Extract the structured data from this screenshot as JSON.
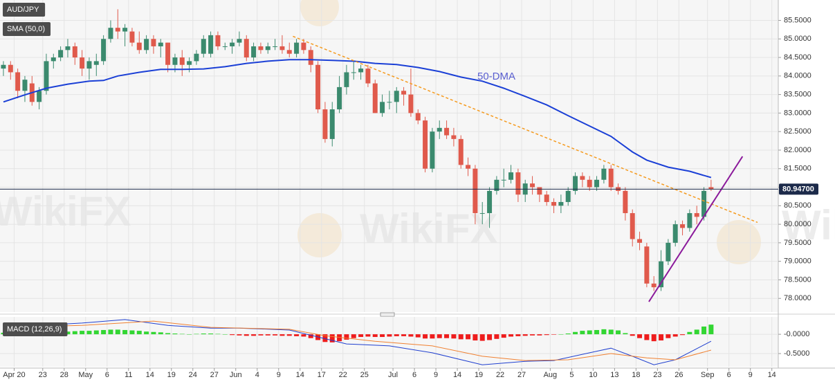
{
  "chart_data": [
    {
      "type": "candlestick",
      "title": "AUD/JPY",
      "watermark": "WikiFX",
      "grid": true,
      "up_color": "#3b8a6e",
      "down_color": "#e05a4c",
      "xlim": [
        -0.48,
        108.4
      ],
      "ylim": [
        77.65,
        86.05
      ],
      "xticks": [
        {
          "value": 1.5,
          "label": "Apr 20"
        },
        {
          "value": 5.5,
          "label": "23"
        },
        {
          "value": 8.5,
          "label": "28"
        },
        {
          "value": 11.5,
          "label": "May"
        },
        {
          "value": 14.5,
          "label": "6"
        },
        {
          "value": 17.5,
          "label": "11"
        },
        {
          "value": 20.5,
          "label": "14"
        },
        {
          "value": 23.5,
          "label": "19"
        },
        {
          "value": 26.5,
          "label": "24"
        },
        {
          "value": 29.5,
          "label": "27"
        },
        {
          "value": 32.5,
          "label": "Jun"
        },
        {
          "value": 35.5,
          "label": "4"
        },
        {
          "value": 38.5,
          "label": "9"
        },
        {
          "value": 41.5,
          "label": "14"
        },
        {
          "value": 44.5,
          "label": "17"
        },
        {
          "value": 47.5,
          "label": "22"
        },
        {
          "value": 50.5,
          "label": "25"
        },
        {
          "value": 54.5,
          "label": "Jul"
        },
        {
          "value": 57.5,
          "label": "6"
        },
        {
          "value": 60.5,
          "label": "9"
        },
        {
          "value": 63.5,
          "label": "14"
        },
        {
          "value": 66.5,
          "label": "19"
        },
        {
          "value": 69.5,
          "label": "22"
        },
        {
          "value": 72.5,
          "label": "27"
        },
        {
          "value": 76.5,
          "label": "Aug"
        },
        {
          "value": 79.5,
          "label": "5"
        },
        {
          "value": 82.5,
          "label": "10"
        },
        {
          "value": 85.5,
          "label": "13"
        },
        {
          "value": 88.5,
          "label": "18"
        },
        {
          "value": 91.5,
          "label": "23"
        },
        {
          "value": 94.5,
          "label": "26"
        },
        {
          "value": 98.5,
          "label": "Sep"
        },
        {
          "value": 101.5,
          "label": "6"
        },
        {
          "value": 104.5,
          "label": "9"
        },
        {
          "value": 107.5,
          "label": "14"
        }
      ],
      "yticks": [
        {
          "value": 78,
          "label": "78.0000"
        },
        {
          "value": 78.5,
          "label": "78.5000"
        },
        {
          "value": 79,
          "label": "79.0000"
        },
        {
          "value": 79.5,
          "label": "79.5000"
        },
        {
          "value": 80,
          "label": "80.0000"
        },
        {
          "value": 80.5,
          "label": "80.5000"
        },
        {
          "value": 81,
          "label": "81.0000"
        },
        {
          "value": 81.5,
          "label": "81.5000"
        },
        {
          "value": 82,
          "label": "82.0000"
        },
        {
          "value": 82.5,
          "label": "82.5000"
        },
        {
          "value": 83,
          "label": "83.0000"
        },
        {
          "value": 83.5,
          "label": "83.5000"
        },
        {
          "value": 84,
          "label": "84.0000"
        },
        {
          "value": 84.5,
          "label": "84.5000"
        },
        {
          "value": 85,
          "label": "85.0000"
        },
        {
          "value": 85.5,
          "label": "85.5000"
        }
      ],
      "candles": {
        "x": [
          0,
          1,
          2,
          3,
          4,
          5,
          6,
          7,
          8,
          9,
          10,
          11,
          12,
          13,
          14,
          15,
          16,
          17,
          18,
          19,
          20,
          21,
          22,
          23,
          24,
          25,
          26,
          27,
          28,
          29,
          30,
          31,
          32,
          33,
          34,
          35,
          36,
          37,
          38,
          39,
          40,
          41,
          42,
          43,
          44,
          45,
          46,
          47,
          48,
          49,
          50,
          51,
          52,
          53,
          54,
          55,
          56,
          57,
          58,
          59,
          60,
          61,
          62,
          63,
          64,
          65,
          66,
          67,
          68,
          69,
          70,
          71,
          72,
          73,
          74,
          75,
          76,
          77,
          78,
          79,
          80,
          81,
          82,
          83,
          84,
          85,
          86,
          87,
          88,
          89,
          90,
          91,
          92,
          93,
          94,
          95,
          96,
          97,
          98,
          99
        ],
        "open": [
          84.2,
          84.3,
          84.1,
          83.6,
          83.8,
          83.3,
          83.6,
          84.4,
          84.5,
          84.7,
          84.8,
          84.5,
          84.2,
          84.3,
          84.4,
          85.0,
          85.3,
          85.2,
          85.2,
          84.9,
          84.7,
          85.0,
          84.8,
          84.9,
          84.3,
          84.5,
          84.3,
          84.4,
          84.6,
          84.6,
          85.1,
          84.8,
          84.8,
          84.9,
          85.0,
          84.5,
          84.8,
          84.7,
          84.8,
          84.8,
          84.7,
          84.6,
          84.9,
          84.7,
          84.3,
          83.1,
          82.3,
          83.1,
          83.7,
          84.1,
          84.1,
          84.2,
          83.8,
          83.0,
          83.3,
          83.3,
          83.6,
          83.5,
          83.0,
          82.8,
          81.5,
          82.5,
          82.6,
          82.4,
          82.3,
          81.6,
          81.5,
          80.3,
          80.3,
          80.9,
          81.2,
          81.2,
          81.4,
          80.8,
          81.1,
          81.0,
          80.8,
          80.6,
          80.5,
          80.6,
          80.9,
          81.3,
          81.2,
          81.0,
          81.2,
          81.5,
          81.0,
          80.9,
          80.3,
          79.6,
          79.4,
          78.4,
          78.3,
          79.0,
          79.5,
          80.0,
          79.9,
          80.3,
          80.2,
          81.0
        ],
        "high": [
          84.4,
          84.4,
          84.2,
          84.0,
          84.0,
          83.7,
          84.6,
          84.6,
          84.8,
          85.0,
          84.9,
          84.7,
          84.5,
          84.6,
          85.1,
          85.5,
          85.8,
          85.4,
          85.3,
          85.2,
          85.1,
          85.1,
          85.0,
          84.9,
          84.6,
          84.7,
          84.5,
          84.7,
          85.1,
          85.2,
          85.2,
          84.9,
          85.0,
          85.2,
          85.1,
          84.9,
          84.9,
          84.9,
          85.0,
          85.1,
          84.9,
          85.0,
          85.0,
          84.8,
          84.4,
          83.3,
          83.3,
          84.0,
          84.3,
          84.4,
          84.3,
          84.3,
          83.9,
          83.5,
          83.6,
          83.7,
          83.7,
          84.2,
          83.1,
          82.9,
          82.6,
          82.8,
          82.8,
          82.6,
          82.4,
          81.8,
          81.6,
          80.6,
          81.0,
          81.3,
          81.5,
          81.6,
          81.5,
          81.2,
          81.3,
          81.0,
          80.9,
          80.7,
          80.8,
          81.0,
          81.4,
          81.4,
          81.3,
          81.3,
          81.6,
          81.6,
          81.1,
          81.0,
          80.4,
          79.8,
          79.5,
          78.6,
          79.3,
          79.6,
          80.1,
          80.1,
          80.4,
          80.5,
          81.0,
          81.2
        ],
        "low": [
          84.0,
          83.9,
          83.4,
          83.3,
          83.2,
          83.1,
          83.5,
          84.2,
          84.4,
          84.5,
          84.3,
          84.0,
          83.9,
          84.0,
          84.3,
          84.9,
          85.0,
          84.8,
          84.8,
          84.6,
          84.6,
          84.6,
          84.5,
          84.1,
          84.1,
          84.0,
          84.1,
          84.3,
          84.5,
          84.5,
          84.7,
          84.7,
          84.6,
          84.8,
          84.4,
          84.4,
          84.6,
          84.6,
          84.7,
          84.6,
          84.5,
          84.5,
          84.6,
          84.1,
          83.0,
          82.2,
          82.1,
          83.0,
          83.5,
          83.9,
          83.9,
          83.7,
          83.0,
          82.9,
          83.1,
          83.0,
          83.2,
          82.9,
          82.7,
          81.4,
          81.4,
          82.3,
          82.3,
          82.1,
          81.5,
          81.3,
          80.0,
          80.0,
          79.9,
          80.8,
          81.0,
          81.1,
          80.6,
          80.6,
          80.8,
          80.6,
          80.5,
          80.3,
          80.3,
          80.5,
          80.8,
          81.0,
          80.9,
          80.9,
          81.1,
          80.9,
          80.8,
          80.1,
          79.4,
          79.3,
          78.3,
          78.2,
          78.2,
          78.9,
          79.4,
          79.7,
          79.8,
          80.0,
          80.1,
          80.9
        ],
        "close": [
          84.3,
          84.1,
          83.6,
          83.9,
          83.3,
          83.6,
          84.4,
          84.5,
          84.7,
          84.8,
          84.5,
          84.2,
          84.4,
          84.4,
          85.0,
          85.3,
          85.2,
          85.3,
          84.9,
          84.7,
          85.0,
          84.8,
          84.9,
          84.3,
          84.5,
          84.3,
          84.4,
          84.6,
          85.0,
          85.1,
          84.8,
          84.8,
          84.9,
          85.0,
          84.5,
          84.8,
          84.7,
          84.8,
          84.8,
          84.7,
          84.6,
          84.9,
          84.7,
          84.3,
          83.1,
          82.3,
          83.1,
          83.7,
          84.1,
          84.1,
          84.2,
          83.8,
          83.0,
          83.3,
          83.3,
          83.6,
          83.5,
          83.0,
          82.8,
          81.5,
          82.5,
          82.6,
          82.4,
          82.3,
          81.6,
          81.5,
          80.3,
          80.3,
          80.9,
          81.2,
          81.2,
          81.4,
          80.8,
          81.1,
          81.0,
          80.8,
          80.6,
          80.5,
          80.6,
          80.9,
          81.3,
          81.2,
          81.0,
          81.2,
          81.5,
          81.0,
          80.9,
          80.3,
          79.6,
          79.5,
          78.4,
          78.3,
          79.0,
          79.5,
          80.0,
          79.9,
          80.3,
          80.2,
          80.9,
          80.95
        ]
      },
      "series": [
        {
          "name": "SMA (50,0)",
          "color": "#1a3fd6",
          "annotation": "50-DMA",
          "x": [
            0,
            3,
            6,
            9,
            12,
            14,
            16,
            19,
            22,
            25,
            28,
            31,
            34,
            37,
            40,
            43,
            46,
            49,
            52,
            55,
            58,
            61,
            64,
            67,
            70,
            73,
            76,
            79,
            82,
            85,
            88,
            90,
            93,
            96,
            99
          ],
          "values": [
            83.3,
            83.49,
            83.67,
            83.78,
            83.86,
            83.88,
            84.0,
            84.1,
            84.18,
            84.18,
            84.19,
            84.25,
            84.34,
            84.4,
            84.44,
            84.44,
            84.42,
            84.4,
            84.34,
            84.31,
            84.23,
            84.12,
            83.97,
            83.86,
            83.67,
            83.45,
            83.22,
            82.93,
            82.65,
            82.37,
            81.95,
            81.73,
            81.54,
            81.43,
            81.26
          ]
        }
      ],
      "trendlines": [
        {
          "color": "#f59a1d",
          "dashed": true,
          "x": [
            40.5,
            105.5
          ],
          "values": [
            85.07,
            80.05
          ]
        },
        {
          "color": "#8b1a9b",
          "dashed": false,
          "x": [
            90.3,
            103.4
          ],
          "values": [
            77.91,
            81.83
          ]
        }
      ],
      "last_price": {
        "value": 80.947,
        "label": "80.94700"
      }
    },
    {
      "type": "macd",
      "title": "MACD (12,26,9)",
      "grid": true,
      "xlim": [
        -0.48,
        108.4
      ],
      "ylim": [
        -0.84,
        0.45
      ],
      "yticks": [
        {
          "value": 0,
          "label": "-0.0000"
        },
        {
          "value": -0.5,
          "label": "-0.5000"
        }
      ],
      "up_color": "#33d633",
      "down_color": "#ee1c1c",
      "histogram": [
        0.04,
        0.04,
        0.03,
        0.02,
        0.02,
        0.02,
        0.03,
        0.05,
        0.06,
        0.07,
        0.08,
        0.09,
        0.09,
        0.1,
        0.11,
        0.12,
        0.12,
        0.11,
        0.1,
        0.09,
        0.07,
        0.06,
        0.05,
        0.03,
        0.02,
        0.01,
        0.0,
        0.01,
        0.02,
        0.02,
        0.01,
        0.0,
        -0.02,
        -0.03,
        -0.04,
        -0.04,
        -0.03,
        -0.03,
        -0.03,
        -0.04,
        -0.04,
        -0.05,
        -0.06,
        -0.1,
        -0.15,
        -0.2,
        -0.21,
        -0.18,
        -0.14,
        -0.1,
        -0.07,
        -0.06,
        -0.07,
        -0.07,
        -0.06,
        -0.05,
        -0.05,
        -0.06,
        -0.08,
        -0.11,
        -0.11,
        -0.1,
        -0.1,
        -0.11,
        -0.13,
        -0.13,
        -0.16,
        -0.17,
        -0.15,
        -0.12,
        -0.09,
        -0.06,
        -0.05,
        -0.04,
        -0.03,
        -0.03,
        -0.02,
        -0.01,
        0.0,
        0.02,
        0.06,
        0.09,
        0.1,
        0.11,
        0.13,
        0.12,
        0.1,
        0.03,
        -0.04,
        -0.1,
        -0.15,
        -0.18,
        -0.16,
        -0.1,
        -0.06,
        -0.02,
        0.06,
        0.12,
        0.2,
        0.25
      ],
      "series": [
        {
          "color": "#1f3fcf",
          "x": [
            0,
            5,
            11,
            17,
            23,
            29,
            33,
            40,
            44,
            48,
            54,
            60,
            67,
            73,
            77,
            82,
            85,
            88,
            91,
            94,
            99
          ],
          "values": [
            0.23,
            0.23,
            0.29,
            0.38,
            0.23,
            0.16,
            0.16,
            0.11,
            -0.07,
            -0.25,
            -0.3,
            -0.48,
            -0.79,
            -0.7,
            -0.68,
            -0.48,
            -0.36,
            -0.57,
            -0.79,
            -0.66,
            -0.18
          ]
        },
        {
          "color": "#f08030",
          "x": [
            0,
            11,
            21,
            29,
            40,
            45,
            52,
            60,
            67,
            73,
            79,
            85,
            90,
            94,
            99
          ],
          "values": [
            0.18,
            0.23,
            0.34,
            0.18,
            0.13,
            -0.04,
            -0.18,
            -0.3,
            -0.57,
            -0.68,
            -0.66,
            -0.5,
            -0.61,
            -0.66,
            -0.41
          ]
        }
      ]
    }
  ]
}
